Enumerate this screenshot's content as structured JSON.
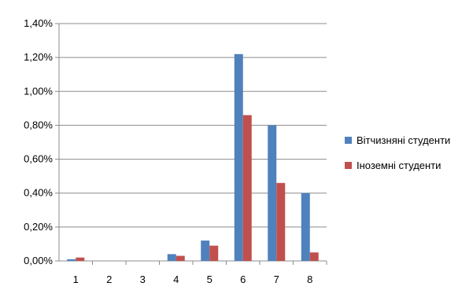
{
  "chart_data": {
    "type": "bar",
    "title": "",
    "xlabel": "",
    "ylabel": "",
    "categories": [
      "1",
      "2",
      "3",
      "4",
      "5",
      "6",
      "7",
      "8"
    ],
    "ylim": [
      0,
      1.4
    ],
    "yticks": [
      0,
      0.2,
      0.4,
      0.6,
      0.8,
      1.0,
      1.2,
      1.4
    ],
    "ytick_labels": [
      "0,00%",
      "0,20%",
      "0,40%",
      "0,60%",
      "0,80%",
      "1,00%",
      "1,20%",
      "1,40%"
    ],
    "grid": true,
    "legend_position": "right",
    "series": [
      {
        "name": "Вітчизняні студенти",
        "color": "#4F81BD",
        "values": [
          0.01,
          0.0,
          0.0,
          0.04,
          0.12,
          1.22,
          0.8,
          0.4
        ]
      },
      {
        "name": "Іноземні студенти",
        "color": "#C0504D",
        "values": [
          0.02,
          0.0,
          0.0,
          0.03,
          0.09,
          0.86,
          0.46,
          0.05
        ]
      }
    ]
  }
}
